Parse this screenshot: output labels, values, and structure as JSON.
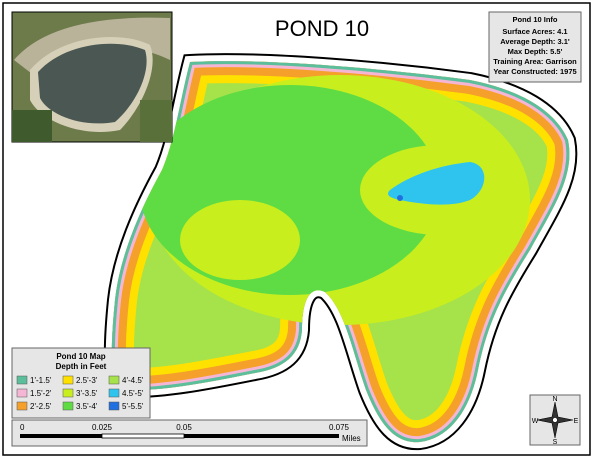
{
  "title": "POND 10",
  "info": {
    "heading": "Pond 10 Info",
    "lines": [
      "Surface Acres: 4.1",
      "Average Depth: 3.1'",
      "Max Depth: 5.5'",
      "Training Area: Garrison",
      "Year Constructed: 1975"
    ]
  },
  "legend": {
    "title": "Pond 10 Map",
    "subtitle": "Depth in Feet",
    "items": [
      {
        "label": "1'-1.5'",
        "color": "#5cbf9c"
      },
      {
        "label": "1.5'-2'",
        "color": "#f5b6d6"
      },
      {
        "label": "2'-2.5'",
        "color": "#f5a02a"
      },
      {
        "label": "2.5'-3'",
        "color": "#ffe100"
      },
      {
        "label": "3'-3.5'",
        "color": "#c9ee1e"
      },
      {
        "label": "3.5'-4'",
        "color": "#5fdc44"
      },
      {
        "label": "4'-4.5'",
        "color": "#a6e24a"
      },
      {
        "label": "4.5'-5'",
        "color": "#2fc4ee"
      },
      {
        "label": "5'-5.5'",
        "color": "#2070e0"
      }
    ]
  },
  "scale_bar": {
    "labels": [
      "0",
      "0.025",
      "0.05",
      "0.075"
    ],
    "unit": "Miles"
  },
  "compass": {
    "n": "N",
    "s": "S",
    "e": "E",
    "w": "W"
  }
}
